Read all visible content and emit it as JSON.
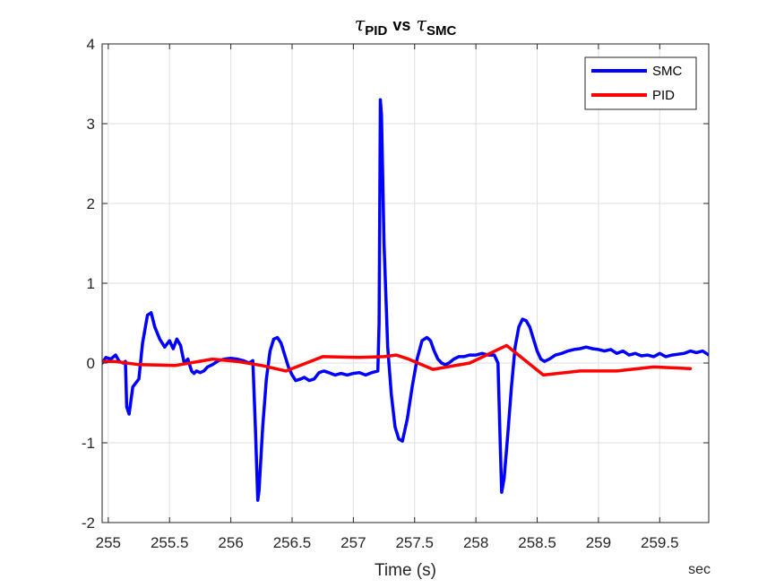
{
  "chart_data": {
    "type": "line",
    "title": {
      "part1_symbol": "τ",
      "part1_sub": "PID",
      "vs": "vs",
      "part2_symbol": "τ",
      "part2_sub": "SMC"
    },
    "xlabel": "Time (s)",
    "x_unit": "sec",
    "ylabel": "",
    "xlim": [
      254.95,
      259.9
    ],
    "ylim": [
      -2,
      4
    ],
    "xticks": [
      255,
      255.5,
      256,
      256.5,
      257,
      257.5,
      258,
      258.5,
      259,
      259.5
    ],
    "xtick_labels": [
      "255",
      "255.5",
      "256",
      "256.5",
      "257",
      "257.5",
      "258",
      "258.5",
      "259",
      "259.5"
    ],
    "yticks": [
      -2,
      -1,
      0,
      1,
      2,
      3,
      4
    ],
    "ytick_labels": [
      "-2",
      "-1",
      "0",
      "1",
      "2",
      "3",
      "4"
    ],
    "grid": true,
    "legend_position": "top-right",
    "series": [
      {
        "name": "SMC",
        "color": "#0000ff",
        "x": [
          254.95,
          254.98,
          255.02,
          255.06,
          255.09,
          255.12,
          255.14,
          255.15,
          255.17,
          255.2,
          255.25,
          255.28,
          255.32,
          255.35,
          255.38,
          255.42,
          255.46,
          255.5,
          255.53,
          255.56,
          255.59,
          255.62,
          255.65,
          255.68,
          255.7,
          255.72,
          255.75,
          255.78,
          255.81,
          255.85,
          255.9,
          255.95,
          256.0,
          256.05,
          256.1,
          256.15,
          256.18,
          256.2,
          256.22,
          256.23,
          256.26,
          256.29,
          256.32,
          256.35,
          256.38,
          256.41,
          256.44,
          256.47,
          256.5,
          256.53,
          256.57,
          256.6,
          256.64,
          256.68,
          256.72,
          256.76,
          256.8,
          256.85,
          256.9,
          256.95,
          257.0,
          257.05,
          257.1,
          257.15,
          257.2,
          257.21,
          257.22,
          257.23,
          257.25,
          257.28,
          257.31,
          257.34,
          257.37,
          257.4,
          257.44,
          257.48,
          257.52,
          257.56,
          257.6,
          257.63,
          257.66,
          257.69,
          257.72,
          257.75,
          257.78,
          257.82,
          257.86,
          257.9,
          257.95,
          258.0,
          258.05,
          258.1,
          258.15,
          258.18,
          258.2,
          258.21,
          258.23,
          258.26,
          258.29,
          258.32,
          258.35,
          258.38,
          258.41,
          258.44,
          258.47,
          258.5,
          258.53,
          258.56,
          258.6,
          258.65,
          258.7,
          258.75,
          258.8,
          258.85,
          258.9,
          258.95,
          259.0,
          259.05,
          259.1,
          259.15,
          259.2,
          259.25,
          259.3,
          259.35,
          259.4,
          259.45,
          259.5,
          259.55,
          259.6,
          259.65,
          259.7,
          259.75,
          259.8,
          259.85,
          259.9
        ],
        "y": [
          0.0,
          0.07,
          0.05,
          0.1,
          0.02,
          0.0,
          0.02,
          -0.55,
          -0.64,
          -0.3,
          -0.2,
          0.25,
          0.6,
          0.63,
          0.45,
          0.3,
          0.2,
          0.28,
          0.18,
          0.3,
          0.22,
          0.0,
          0.05,
          -0.1,
          -0.13,
          -0.1,
          -0.12,
          -0.1,
          -0.05,
          -0.02,
          0.03,
          0.05,
          0.06,
          0.05,
          0.03,
          0.0,
          0.03,
          -0.8,
          -1.72,
          -1.6,
          -0.8,
          -0.2,
          0.15,
          0.3,
          0.32,
          0.25,
          0.1,
          -0.05,
          -0.15,
          -0.22,
          -0.2,
          -0.18,
          -0.22,
          -0.2,
          -0.12,
          -0.1,
          -0.12,
          -0.15,
          -0.13,
          -0.15,
          -0.13,
          -0.12,
          -0.15,
          -0.12,
          -0.1,
          0.5,
          3.3,
          3.1,
          1.5,
          0.2,
          -0.4,
          -0.8,
          -0.95,
          -0.98,
          -0.7,
          -0.3,
          0.05,
          0.28,
          0.32,
          0.28,
          0.15,
          0.05,
          0.0,
          -0.02,
          0.0,
          0.05,
          0.08,
          0.08,
          0.1,
          0.1,
          0.12,
          0.1,
          0.1,
          0.0,
          -1.1,
          -1.62,
          -1.45,
          -0.9,
          -0.3,
          0.2,
          0.45,
          0.55,
          0.53,
          0.45,
          0.3,
          0.15,
          0.05,
          0.02,
          0.05,
          0.1,
          0.12,
          0.15,
          0.17,
          0.18,
          0.2,
          0.18,
          0.17,
          0.15,
          0.17,
          0.12,
          0.15,
          0.1,
          0.12,
          0.09,
          0.1,
          0.08,
          0.12,
          0.08,
          0.1,
          0.11,
          0.12,
          0.15,
          0.13,
          0.15,
          0.1
        ]
      },
      {
        "name": "PID",
        "color": "#ff0000",
        "x": [
          254.95,
          255.05,
          255.25,
          255.55,
          255.85,
          256.05,
          256.25,
          256.45,
          256.75,
          257.05,
          257.25,
          257.35,
          257.45,
          257.65,
          257.95,
          258.25,
          258.55,
          258.85,
          259.15,
          259.45,
          259.75
        ],
        "y": [
          0.02,
          0.02,
          -0.02,
          -0.03,
          0.05,
          0.02,
          -0.03,
          -0.1,
          0.08,
          0.07,
          0.08,
          0.1,
          0.05,
          -0.08,
          0.0,
          0.22,
          -0.15,
          -0.1,
          -0.1,
          -0.05,
          -0.07
        ]
      }
    ]
  }
}
